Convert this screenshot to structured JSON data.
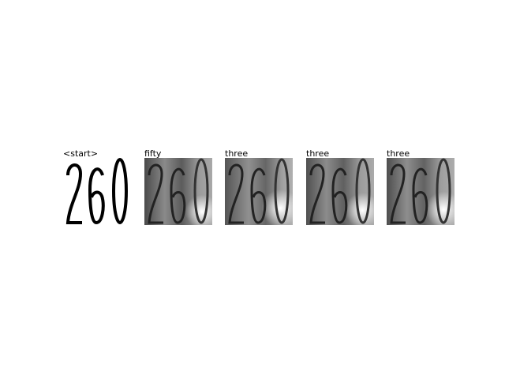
{
  "panels": [
    {
      "label": "<start>",
      "style": "binary"
    },
    {
      "label": "fifty",
      "style": "attention"
    },
    {
      "label": "three",
      "style": "attention"
    },
    {
      "label": "three",
      "style": "attention"
    },
    {
      "label": "three",
      "style": "attention"
    }
  ],
  "digits_shown": "260"
}
